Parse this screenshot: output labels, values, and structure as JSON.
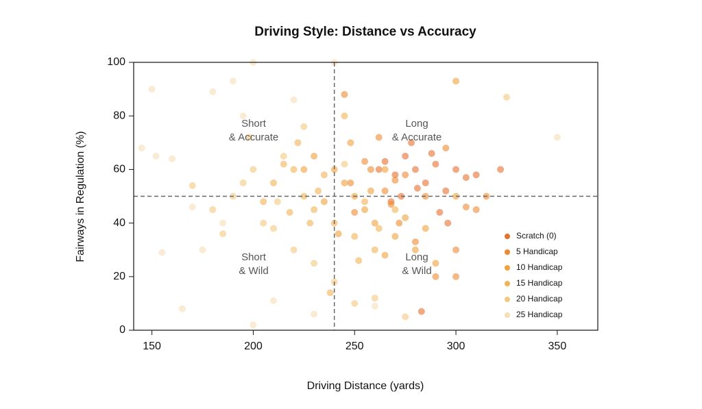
{
  "chart_data": {
    "type": "scatter",
    "title": "Driving Style: Distance vs Accuracy",
    "x_label": "Driving Distance (yards)",
    "y_label": "Fairways in Regulation (%)",
    "xlim": [
      141,
      370
    ],
    "ylim": [
      0,
      100
    ],
    "xticks": [
      150,
      200,
      250,
      300,
      350
    ],
    "yticks": [
      0,
      20,
      40,
      60,
      80,
      100
    ],
    "reference_lines": {
      "x": 240,
      "y": 50
    },
    "legend_position": "bottom-right",
    "annotations": [
      {
        "text": [
          "Short",
          "& Accurate"
        ]
      },
      {
        "text": [
          "Long",
          "& Accurate"
        ]
      },
      {
        "text": [
          "Short",
          "& Wild"
        ]
      },
      {
        "text": [
          "Long",
          "& Wild"
        ]
      }
    ],
    "series": [
      {
        "name": "Scratch (0)",
        "color": "#e6702e",
        "x": [
          265,
          270,
          275,
          280,
          285,
          290,
          295,
          300,
          310,
          322,
          278,
          288,
          268,
          292,
          283,
          273,
          305,
          296,
          262,
          281
        ],
        "y": [
          63,
          58,
          65,
          60,
          55,
          62,
          52,
          60,
          58,
          60,
          70,
          66,
          48,
          44,
          7,
          50,
          57,
          40,
          60,
          53
        ]
      },
      {
        "name": "5 Handicap",
        "color": "#ec8a32",
        "x": [
          245,
          255,
          262,
          270,
          275,
          285,
          295,
          300,
          310,
          315,
          250,
          265,
          280,
          290,
          258,
          272,
          300,
          305,
          248,
          268
        ],
        "y": [
          88,
          63,
          72,
          56,
          58,
          50,
          68,
          20,
          45,
          50,
          44,
          52,
          33,
          20,
          60,
          40,
          30,
          46,
          55,
          47
        ]
      },
      {
        "name": "10 Handicap",
        "color": "#f0a23c",
        "x": [
          230,
          240,
          245,
          250,
          255,
          260,
          265,
          270,
          280,
          290,
          235,
          248,
          258,
          275,
          285,
          300,
          242,
          225,
          265,
          300
        ],
        "y": [
          65,
          60,
          55,
          50,
          45,
          40,
          60,
          35,
          30,
          25,
          48,
          70,
          52,
          42,
          38,
          93,
          36,
          60,
          28,
          50
        ]
      },
      {
        "name": "15 Handicap",
        "color": "#f0b457",
        "x": [
          210,
          220,
          225,
          230,
          235,
          240,
          250,
          255,
          260,
          215,
          228,
          245,
          270,
          238,
          222,
          205,
          252,
          232,
          218,
          262
        ],
        "y": [
          55,
          60,
          50,
          45,
          58,
          40,
          35,
          48,
          30,
          62,
          40,
          80,
          45,
          14,
          70,
          48,
          26,
          52,
          44,
          38
        ]
      },
      {
        "name": "20 Handicap",
        "color": "#f3c880",
        "x": [
          180,
          190,
          195,
          200,
          205,
          210,
          215,
          220,
          230,
          240,
          250,
          260,
          185,
          198,
          212,
          225,
          245,
          325,
          170,
          275
        ],
        "y": [
          45,
          50,
          55,
          60,
          40,
          38,
          65,
          30,
          25,
          18,
          10,
          12,
          36,
          72,
          48,
          76,
          62,
          87,
          54,
          5
        ]
      },
      {
        "name": "25 Handicap",
        "color": "#f7ddb8",
        "x": [
          145,
          150,
          152,
          160,
          170,
          175,
          180,
          190,
          200,
          210,
          220,
          230,
          155,
          165,
          185,
          200,
          350,
          260,
          195,
          240
        ],
        "y": [
          68,
          90,
          65,
          64,
          46,
          30,
          89,
          93,
          100,
          11,
          86,
          6,
          29,
          8,
          40,
          2,
          72,
          9,
          80,
          100
        ]
      }
    ]
  }
}
